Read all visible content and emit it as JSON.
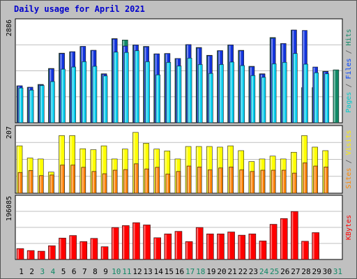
{
  "title": "Daily usage for April 2021",
  "chart_data": [
    {
      "type": "bar",
      "panel": "top",
      "ymax_label": "2886",
      "ylim": [
        0,
        2886
      ],
      "grid": true,
      "categories": [
        "1",
        "2",
        "3",
        "4",
        "5",
        "6",
        "7",
        "8",
        "9",
        "10",
        "11",
        "12",
        "13",
        "14",
        "15",
        "16",
        "17",
        "18",
        "19",
        "20",
        "21",
        "22",
        "23",
        "24",
        "25",
        "26",
        "27",
        "28",
        "29",
        "30",
        "31"
      ],
      "weekend_days": [
        "3",
        "4",
        "10",
        "11",
        "17",
        "18",
        "24",
        "25",
        "31"
      ],
      "side_labels": [
        {
          "text": "Pages",
          "color": "#00cccc"
        },
        {
          "text": " / ",
          "color": "#555555"
        },
        {
          "text": "Files",
          "color": "#0044ff"
        },
        {
          "text": " / ",
          "color": "#555555"
        },
        {
          "text": "Hits",
          "color": "#118866"
        }
      ],
      "series": [
        {
          "name": "Hits",
          "color": "#118866",
          "values": [
            1040,
            1000,
            1080,
            1530,
            1960,
            2000,
            2150,
            2040,
            1380,
            2370,
            2330,
            2190,
            2150,
            1940,
            1950,
            1810,
            2200,
            2120,
            1900,
            2030,
            2190,
            2040,
            1590,
            1380,
            2400,
            2230,
            2610,
            990,
            990,
            1450,
            1490
          ]
        },
        {
          "name": "Files",
          "color": "#1133dd",
          "values": [
            1040,
            1000,
            1070,
            1520,
            1950,
            2000,
            2150,
            2040,
            1370,
            2360,
            2160,
            2190,
            2140,
            1940,
            1950,
            1810,
            2200,
            2110,
            1890,
            2030,
            2190,
            2030,
            1580,
            1370,
            2380,
            2230,
            2610,
            2600,
            1570,
            1440,
            0
          ]
        },
        {
          "name": "Pages",
          "color": "#00ccee",
          "values": [
            980,
            920,
            1050,
            1160,
            1510,
            1570,
            1720,
            1590,
            1320,
            1990,
            1980,
            2030,
            1720,
            1350,
            1700,
            1600,
            1820,
            1640,
            1390,
            1640,
            1710,
            1610,
            1330,
            1280,
            1660,
            1700,
            1950,
            1650,
            1410,
            1380,
            0
          ]
        }
      ]
    },
    {
      "type": "bar",
      "panel": "middle",
      "ymax_label": "207",
      "ylim": [
        0,
        207
      ],
      "grid": true,
      "side_labels": [
        {
          "text": "Sites",
          "color": "#ff8800"
        },
        {
          "text": " / ",
          "color": "#555555"
        },
        {
          "text": "Visits",
          "color": "#ffee00"
        }
      ],
      "series": [
        {
          "name": "Visits",
          "color": "#ffff00",
          "values": [
            148,
            110,
            107,
            66,
            180,
            180,
            139,
            136,
            148,
            107,
            138,
            190,
            156,
            138,
            132,
            107,
            146,
            146,
            146,
            144,
            148,
            133,
            99,
            107,
            116,
            107,
            128,
            180,
            144,
            133,
            0
          ]
        },
        {
          "name": "Sites",
          "color": "#ff8000",
          "values": [
            65,
            71,
            55,
            57,
            88,
            88,
            81,
            68,
            61,
            72,
            74,
            92,
            76,
            81,
            60,
            68,
            85,
            82,
            73,
            79,
            82,
            73,
            68,
            72,
            72,
            72,
            63,
            95,
            85,
            82,
            0
          ]
        }
      ]
    },
    {
      "type": "bar",
      "panel": "bottom",
      "ymax_label": "196085",
      "ylim": [
        0,
        196085
      ],
      "grid": true,
      "side_labels": [
        {
          "text": "KBytes",
          "color": "#ff0000"
        }
      ],
      "series": [
        {
          "name": "KBytes",
          "color": "#ff0000",
          "values": [
            34000,
            28000,
            26000,
            43000,
            67000,
            75000,
            56000,
            66000,
            40000,
            100000,
            106000,
            115000,
            108000,
            68000,
            80000,
            88000,
            56000,
            100000,
            80000,
            80000,
            86000,
            76000,
            80000,
            58000,
            110000,
            128000,
            150000,
            57000,
            84000,
            0,
            0
          ]
        }
      ]
    }
  ]
}
